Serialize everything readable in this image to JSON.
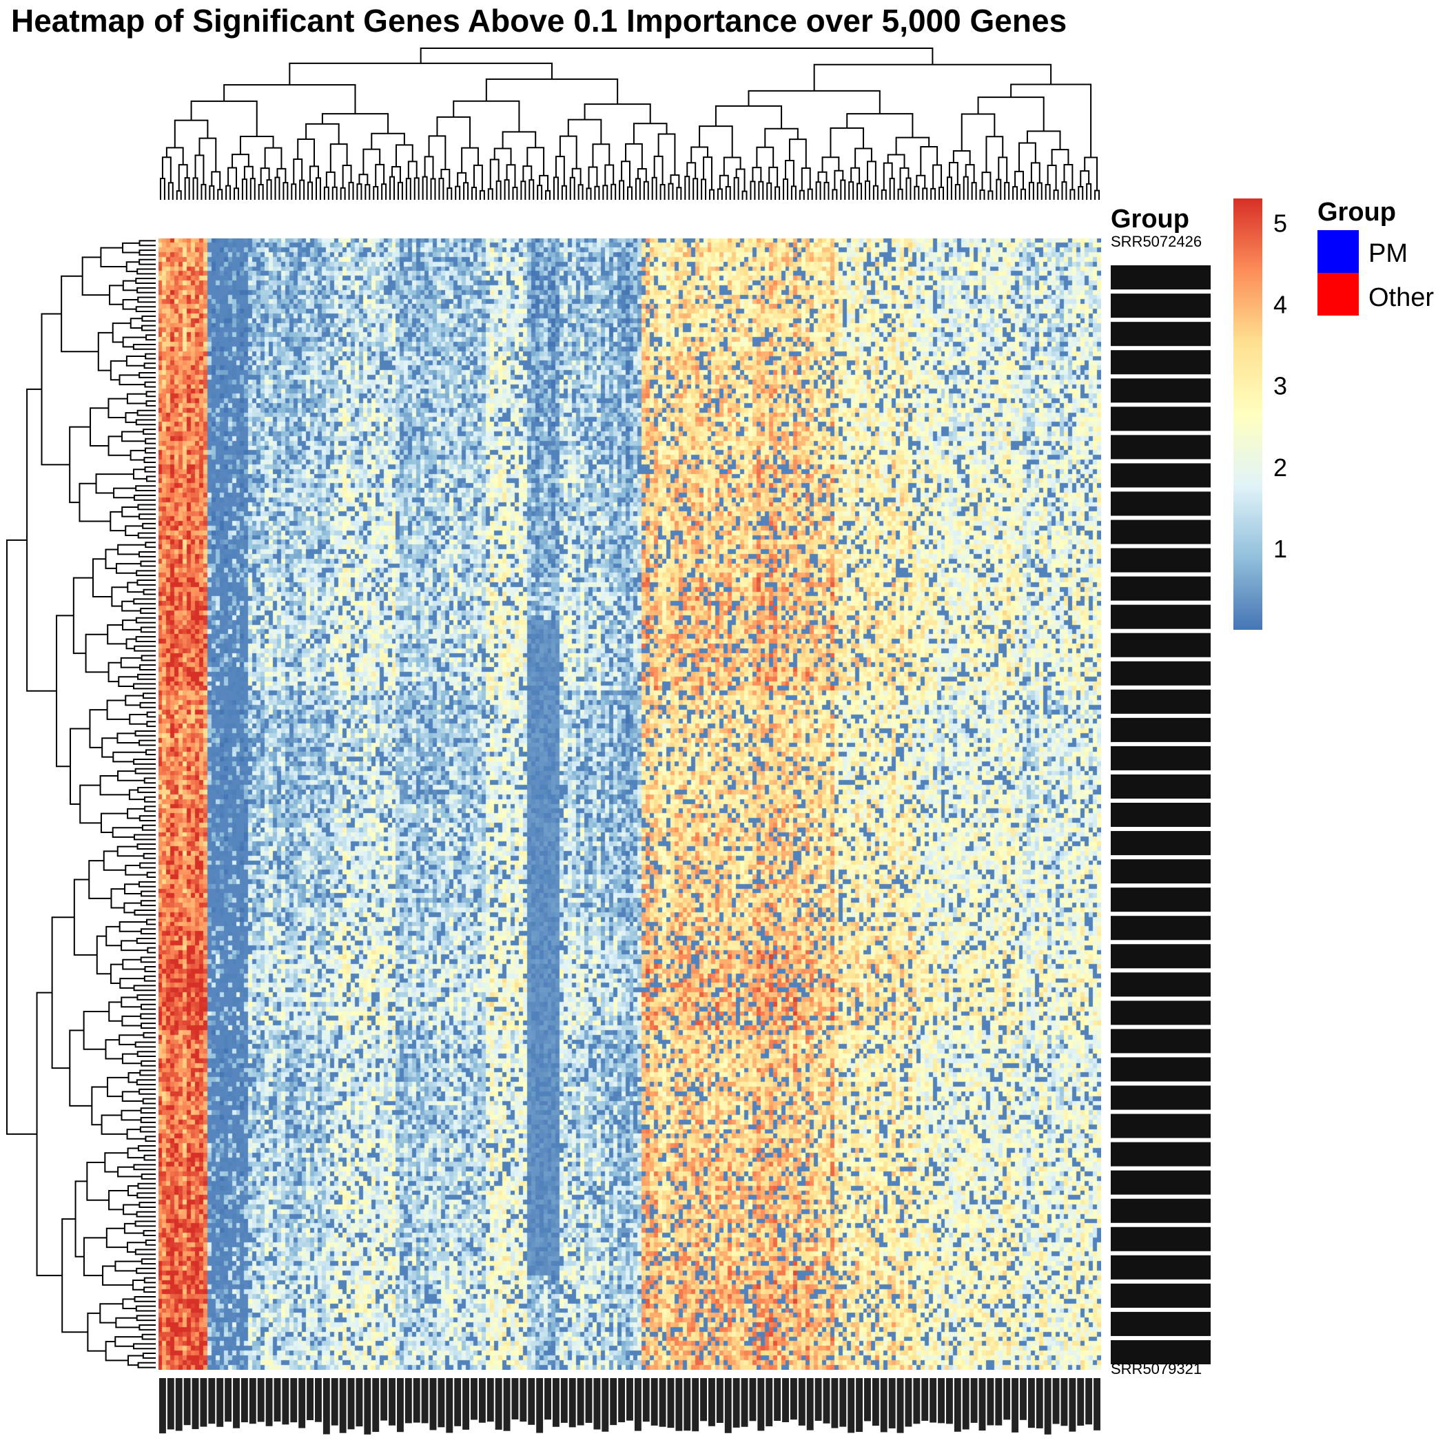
{
  "chart_data": {
    "type": "heatmap",
    "title": "Heatmap of Significant Genes Above 0.1 Importance over 5,000 Genes",
    "annotation_label": "Group",
    "rows": {
      "count": 240,
      "first_label": "SRR5072426",
      "last_label": "SRR5079321"
    },
    "columns": {
      "count": 230
    },
    "value_range": [
      0,
      5.3
    ],
    "colorbar": {
      "ticks": [
        1,
        2,
        3,
        4,
        5
      ],
      "tick_labels": [
        "1",
        "2",
        "3",
        "4",
        "5"
      ],
      "colors": [
        "#4575b4",
        "#91bfdb",
        "#e0f3f8",
        "#ffffbf",
        "#fee090",
        "#fc8d59",
        "#d73027"
      ]
    },
    "legend": {
      "title": "Group",
      "items": [
        {
          "label": "PM",
          "color": "#0000ff"
        },
        {
          "label": "Other",
          "color": "#ff0000"
        }
      ]
    },
    "column_blocks": [
      {
        "from": 0,
        "to": 12,
        "level": 4.5
      },
      {
        "from": 12,
        "to": 22,
        "level": 0.7
      },
      {
        "from": 22,
        "to": 43,
        "level": 1.4
      },
      {
        "from": 43,
        "to": 58,
        "level": 2.0
      },
      {
        "from": 58,
        "to": 80,
        "level": 1.5
      },
      {
        "from": 80,
        "to": 90,
        "level": 2.2
      },
      {
        "from": 90,
        "to": 98,
        "level": 0.8
      },
      {
        "from": 98,
        "to": 108,
        "level": 1.6
      },
      {
        "from": 108,
        "to": 118,
        "level": 1.2
      },
      {
        "from": 118,
        "to": 132,
        "level": 3.5
      },
      {
        "from": 132,
        "to": 148,
        "level": 3.6
      },
      {
        "from": 148,
        "to": 165,
        "level": 3.7
      },
      {
        "from": 165,
        "to": 185,
        "level": 2.9
      },
      {
        "from": 185,
        "to": 210,
        "level": 2.4
      },
      {
        "from": 210,
        "to": 230,
        "level": 2.1
      }
    ]
  }
}
